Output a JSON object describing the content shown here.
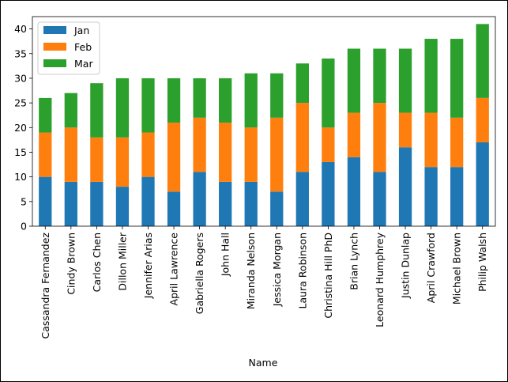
{
  "chart_data": {
    "type": "bar",
    "stacked": true,
    "title": "",
    "xlabel": "Name",
    "ylabel": "",
    "ylim": [
      0,
      42.5
    ],
    "yticks": [
      0,
      5,
      10,
      15,
      20,
      25,
      30,
      35,
      40
    ],
    "legend_position": "top-left",
    "grid": false,
    "categories": [
      "Cassandra Fernandez",
      "Cindy Brown",
      "Carlos Chen",
      "Dillon Miller",
      "Jennifer Arias",
      "April Lawrence",
      "Gabriella Rogers",
      "John Hall",
      "Miranda Nelson",
      "Jessica Morgan",
      "Laura Robinson",
      "Christina Hill PhD",
      "Brian Lynch",
      "Leonard Humphrey",
      "Justin Dunlap",
      "April Crawford",
      "Michael Brown",
      "Philip Walsh"
    ],
    "series": [
      {
        "name": "Jan",
        "color": "#1f77b4",
        "values": [
          10,
          9,
          9,
          8,
          10,
          7,
          11,
          9,
          9,
          7,
          11,
          13,
          14,
          11,
          16,
          12,
          12,
          17
        ]
      },
      {
        "name": "Feb",
        "color": "#ff7f0e",
        "values": [
          9,
          11,
          9,
          10,
          9,
          14,
          11,
          12,
          11,
          15,
          14,
          7,
          9,
          14,
          7,
          11,
          10,
          9
        ]
      },
      {
        "name": "Mar",
        "color": "#2ca02c",
        "values": [
          7,
          7,
          11,
          12,
          11,
          9,
          8,
          9,
          11,
          9,
          8,
          14,
          13,
          11,
          13,
          15,
          16,
          15
        ]
      }
    ]
  }
}
